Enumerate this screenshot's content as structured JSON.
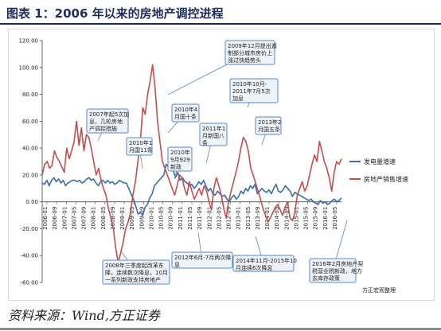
{
  "header": {
    "title": "图表 1：2006 年以来的房地产调控进程"
  },
  "footer": {
    "source": "资料来源：Wind,方正证券"
  },
  "chart_note": "方正宏观整理",
  "chart_data": {
    "type": "line",
    "ylim": [
      -60,
      120
    ],
    "yticks": [
      120,
      100,
      80,
      60,
      40,
      20,
      0,
      -20,
      -40,
      -60
    ],
    "ytick_labels": [
      "120.00",
      "100.00",
      "80.00",
      "60.00",
      "40.00",
      "20.00",
      "0.00",
      "-20.00",
      "-40.00",
      "-60.00"
    ],
    "x_labels": [
      "2006-01",
      "2006-09",
      "2007-01",
      "2007-05",
      "2007-09",
      "2008-01",
      "2008-05",
      "2008-09",
      "2009-01",
      "2009-05",
      "2009-09",
      "2010-01",
      "2010-05",
      "2010-09",
      "2011-01",
      "2011-05",
      "2011-09",
      "2012-01",
      "2012-05",
      "2012-09",
      "2013-01",
      "2013-05",
      "2013-09",
      "2014-01",
      "2014-05",
      "2014-09",
      "2015-01",
      "2015-05",
      "2015-09",
      "2016-01",
      "2016-05"
    ],
    "legend_position": "right",
    "grid": false,
    "series": [
      {
        "name": "发电量增速",
        "color": "#3a6ea5",
        "values": [
          14,
          13,
          16,
          12,
          16,
          18,
          15,
          17,
          14,
          16,
          12,
          14,
          15,
          16,
          16,
          15,
          16,
          14,
          15,
          17,
          18,
          16,
          17,
          14,
          12,
          15,
          16,
          14,
          16,
          14,
          15,
          13,
          14,
          16,
          15,
          14,
          14,
          10,
          6,
          2,
          -3,
          -9,
          -8,
          -10,
          -4,
          -2,
          3,
          6,
          12,
          14,
          16,
          18,
          20,
          28,
          26,
          30,
          24,
          18,
          22,
          16,
          18,
          15,
          14,
          12,
          13,
          10,
          12,
          15,
          13,
          16,
          12,
          8,
          10,
          6,
          5,
          8,
          6,
          4,
          5,
          2,
          0,
          3,
          5,
          2,
          4,
          8,
          6,
          10,
          8,
          12,
          10,
          13,
          6,
          8,
          10,
          8,
          7,
          9,
          6,
          10,
          13,
          8,
          7,
          9,
          12,
          10,
          8,
          4,
          7,
          6,
          5,
          4,
          3,
          2,
          1,
          2,
          0,
          -1,
          -2,
          1,
          -1,
          0,
          -2,
          -1,
          1,
          2,
          0,
          1,
          3
        ]
      },
      {
        "name": "房地产销售增速",
        "color": "#c0504d",
        "values": [
          20,
          28,
          30,
          25,
          27,
          38,
          33,
          30,
          26,
          22,
          40,
          32,
          38,
          45,
          60,
          42,
          55,
          38,
          50,
          48,
          40,
          30,
          20,
          25,
          16,
          10,
          5,
          -5,
          -12,
          -20,
          -35,
          -45,
          -38,
          -30,
          -20,
          -15,
          -8,
          5,
          15,
          30,
          45,
          70,
          65,
          80,
          90,
          102,
          85,
          60,
          45,
          30,
          25,
          20,
          15,
          10,
          5,
          12,
          20,
          18,
          10,
          5,
          15,
          8,
          2,
          6,
          10,
          5,
          12,
          8,
          0,
          -6,
          10,
          18,
          12,
          5,
          -5,
          -12,
          0,
          8,
          15,
          22,
          30,
          40,
          48,
          45,
          38,
          25,
          20,
          14,
          8,
          2,
          -5,
          -10,
          -15,
          -12,
          -8,
          -4,
          -2,
          -6,
          -10,
          -4,
          0,
          -12,
          -14,
          -8,
          5,
          10,
          15,
          8,
          12,
          20,
          28,
          35,
          30,
          45,
          38,
          30,
          25,
          18,
          8,
          22,
          30,
          28,
          32
        ]
      }
    ]
  },
  "annotations": [
    {
      "lines": [
        "2007年起5次加",
        "息，几轮房地",
        "产调控措施"
      ]
    },
    {
      "lines": [
        "2008年三季度起改革东",
        "降，连续数次降息，10月",
        "一系列新政支持房地产"
      ]
    },
    {
      "lines": [
        "2009年12月提出遏",
        "制部分城市房价上",
        "涨过快趋势头"
      ]
    },
    {
      "lines": [
        "2010年1",
        "月国11条"
      ]
    },
    {
      "lines": [
        "2010年4",
        "月国十条"
      ]
    },
    {
      "lines": [
        "2010年",
        "9月929",
        "新政"
      ]
    },
    {
      "lines": [
        "2011年1",
        "月新国八",
        "条"
      ]
    },
    {
      "lines": [
        "2010年10月-",
        "2011年7月5次",
        "加息"
      ]
    },
    {
      "lines": [
        "2013年2",
        "月国五条"
      ]
    },
    {
      "lines": [
        "2012年6月-7月两次降",
        "息"
      ]
    },
    {
      "lines": [
        "2014年11月-2015年10",
        "月连续6次降息"
      ]
    },
    {
      "lines": [
        "2016年2月房地产契",
        "税营业税新政，地方",
        "去库存政策"
      ]
    }
  ]
}
